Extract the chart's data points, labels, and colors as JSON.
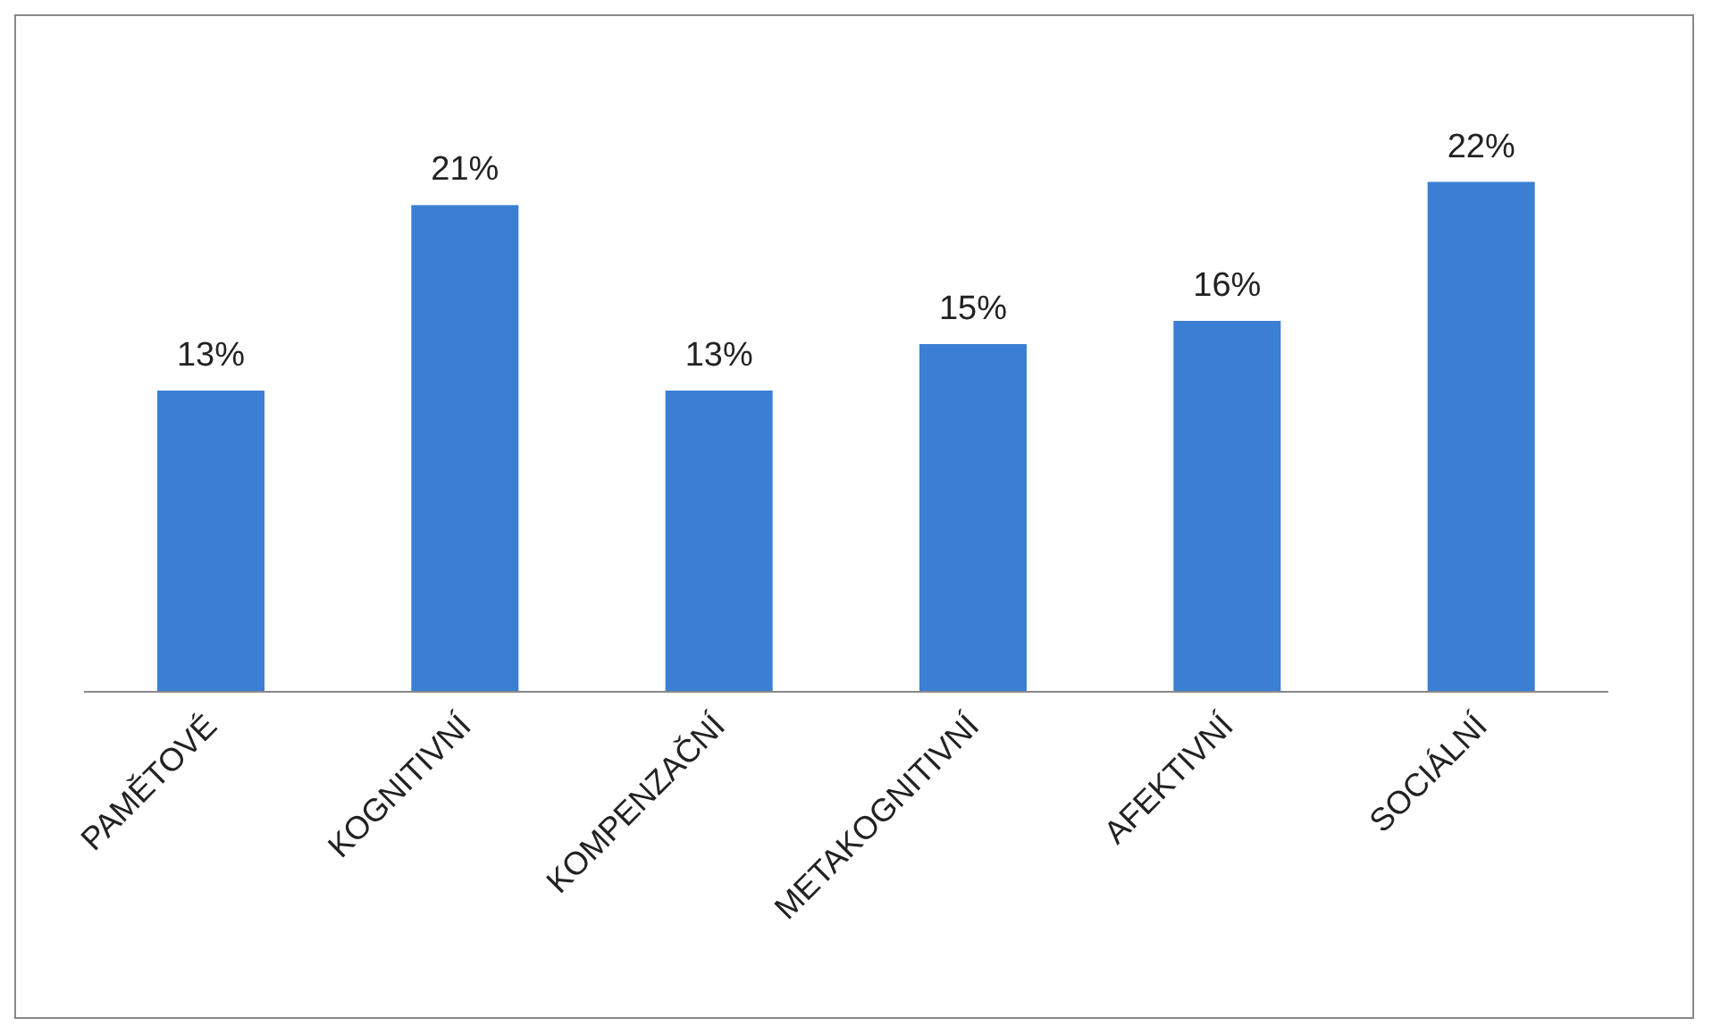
{
  "chart_data": {
    "type": "bar",
    "categories": [
      "PAMĚTOVÉ",
      "KOGNITIVNÍ",
      "KOMPENZAČNÍ",
      "METAKOGNITIVNÍ",
      "AFEKTIVNÍ",
      "SOCIÁLNÍ"
    ],
    "values": [
      13,
      21,
      13,
      15,
      16,
      22
    ],
    "value_labels": [
      "13%",
      "21%",
      "13%",
      "15%",
      "16%",
      "22%"
    ],
    "color": "#3b7fd4",
    "grid": false
  }
}
